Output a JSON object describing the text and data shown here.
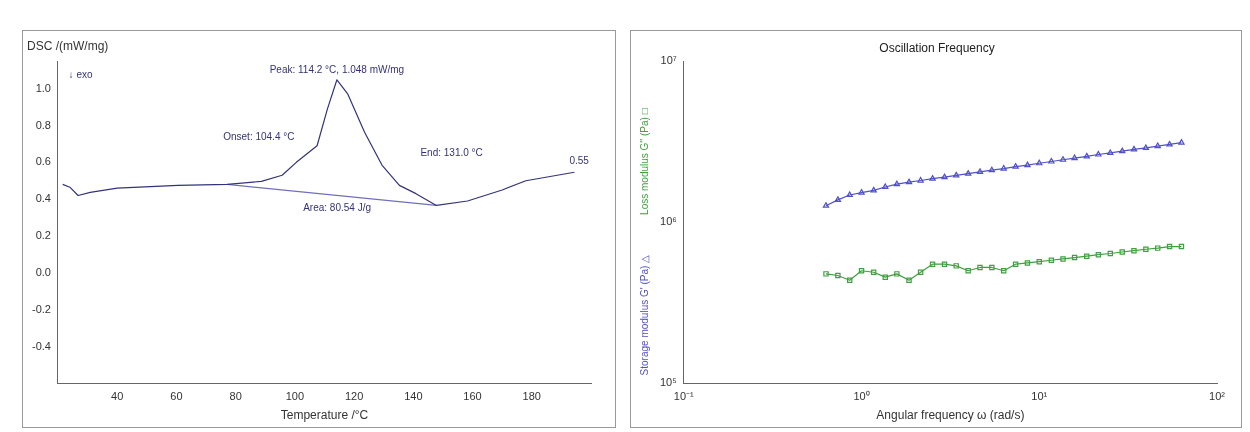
{
  "chart_data": [
    {
      "type": "line",
      "xlabel": "Temperature /°C",
      "ylabel": "DSC /(mW/mg)",
      "xlim": [
        20,
        200
      ],
      "xticks": [
        40,
        60,
        80,
        100,
        120,
        140,
        160,
        180
      ],
      "ylim": [
        -0.6,
        1.15
      ],
      "yticks": [
        {
          "value": -0.4,
          "label": "-0.4"
        },
        {
          "value": -0.2,
          "label": "-0.2"
        },
        {
          "value": 0,
          "label": "0.0"
        },
        {
          "value": 0.2,
          "label": "0.2"
        },
        {
          "value": 0.4,
          "label": "0.4"
        },
        {
          "value": 0.6,
          "label": "0.6"
        },
        {
          "value": 0.8,
          "label": "0.8"
        },
        {
          "value": 1,
          "label": "1.0"
        }
      ],
      "grid": false,
      "marker": "none",
      "series": [
        {
          "color": "#33337a",
          "x": [
            21.6,
            24,
            26.8,
            30.9,
            40,
            60.5,
            77.2,
            88.7,
            95.7,
            100.5,
            107.5,
            111,
            114.2,
            117.9,
            123.5,
            129.4,
            135.3,
            140.9,
            147.8,
            158.3,
            170,
            178,
            194.4
          ],
          "values": [
            0.48,
            0.465,
            0.42,
            0.437,
            0.46,
            0.475,
            0.48,
            0.497,
            0.53,
            0.6,
            0.69,
            0.89,
            1.048,
            0.97,
            0.765,
            0.585,
            0.475,
            0.43,
            0.366,
            0.39,
            0.45,
            0.5,
            0.546
          ]
        },
        {
          "color": "#7070b8",
          "x": [
            77.2,
            147.8
          ],
          "values": [
            0.48,
            0.366
          ]
        }
      ],
      "annotations": [
        "↓ exo",
        {
          "text": "Peak: 114.2 °C, 1.048 mW/mg",
          "x": 114.2,
          "y": 1.048
        },
        "Onset: 104.4 °C",
        "End: 131.0 °C",
        "Area: 80.54 J/g",
        {
          "text": "0.55",
          "x": 196,
          "y": 0.55
        }
      ]
    },
    {
      "type": "line",
      "title": "Oscillation Frequency",
      "xlabel": "Angular frequency ω (rad/s)",
      "log": "xy",
      "xlim": [
        0.1,
        100
      ],
      "xticks": [
        {
          "value": 0.1,
          "label": "10⁻¹"
        },
        {
          "value": 1,
          "label": "10⁰"
        },
        {
          "value": 10,
          "label": "10¹"
        },
        {
          "value": 100,
          "label": "10²"
        }
      ],
      "ylim": [
        100000,
        10000000
      ],
      "yticks": [
        {
          "value": 100000,
          "label": "10⁵"
        },
        {
          "value": 1000000,
          "label": "10⁶"
        },
        {
          "value": 10000000,
          "label": "10⁷"
        }
      ],
      "grid": false,
      "x": [
        0.631,
        0.736,
        0.858,
        1,
        1.17,
        1.36,
        1.58,
        1.85,
        2.15,
        2.51,
        2.93,
        3.41,
        3.98,
        4.64,
        5.41,
        6.31,
        7.36,
        8.58,
        10,
        11.7,
        13.6,
        15.8,
        18.5,
        21.5,
        25.1,
        29.3,
        34.1,
        39.8,
        46.4,
        54.1,
        63.1
      ],
      "series": [
        {
          "name": "Storage modulus G' (Pa) △",
          "color": "#5050c8",
          "marker": "triangle",
          "values": [
            1270000,
            1380000,
            1480000,
            1530000,
            1580000,
            1660000,
            1730000,
            1780000,
            1820000,
            1870000,
            1910000,
            1960000,
            2010000,
            2060000,
            2110000,
            2160000,
            2220000,
            2270000,
            2330000,
            2390000,
            2450000,
            2510000,
            2570000,
            2640000,
            2700000,
            2770000,
            2840000,
            2900000,
            2980000,
            3050000,
            3130000
          ]
        },
        {
          "name": "Loss modulus G'' (Pa) □",
          "color": "#40a040",
          "marker": "square",
          "values": [
            479000,
            468000,
            437000,
            501000,
            490000,
            457000,
            479000,
            437000,
            490000,
            550000,
            550000,
            537000,
            501000,
            525000,
            525000,
            501000,
            550000,
            560000,
            570000,
            582000,
            593000,
            605000,
            617000,
            630000,
            641000,
            655000,
            667000,
            681000,
            692000,
            708000,
            708000
          ]
        }
      ]
    }
  ]
}
